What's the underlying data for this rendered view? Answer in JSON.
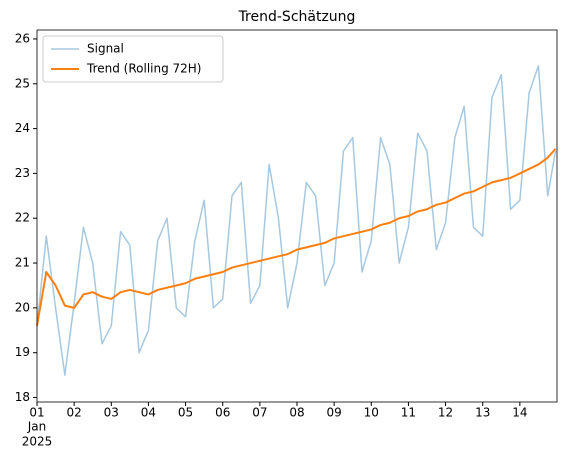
{
  "chart_data": {
    "type": "line",
    "title": "Trend-Schätzung",
    "x": [
      0,
      0.25,
      0.5,
      0.75,
      1,
      1.25,
      1.5,
      1.75,
      2,
      2.25,
      2.5,
      2.75,
      3,
      3.25,
      3.5,
      3.75,
      4,
      4.25,
      4.5,
      4.75,
      5,
      5.25,
      5.5,
      5.75,
      6,
      6.25,
      6.5,
      6.75,
      7,
      7.25,
      7.5,
      7.75,
      8,
      8.25,
      8.5,
      8.75,
      9,
      9.25,
      9.5,
      9.75,
      10,
      10.25,
      10.5,
      10.75,
      11,
      11.25,
      11.5,
      11.75,
      12,
      12.25,
      12.5,
      12.75,
      13,
      13.25,
      13.5,
      13.75,
      13.96
    ],
    "series": [
      {
        "name": "Signal",
        "color": "#a6c8e0",
        "width": 1.5,
        "values": [
          19.6,
          21.6,
          20.0,
          18.5,
          20.1,
          21.8,
          21.0,
          19.2,
          19.6,
          21.7,
          21.4,
          19.0,
          19.5,
          21.5,
          22.0,
          20.0,
          19.8,
          21.5,
          22.4,
          20.0,
          20.2,
          22.5,
          22.8,
          20.1,
          20.5,
          23.2,
          22.0,
          20.0,
          21.0,
          22.8,
          22.5,
          20.5,
          21.0,
          23.5,
          23.8,
          20.8,
          21.5,
          23.8,
          23.2,
          21.0,
          21.8,
          23.9,
          23.5,
          21.3,
          21.9,
          23.8,
          24.5,
          21.8,
          21.6,
          24.7,
          25.2,
          22.2,
          22.4,
          24.8,
          25.4,
          22.5,
          23.5
        ]
      },
      {
        "name": "Trend (Rolling 72H)",
        "color": "#ff7f0e",
        "width": 2,
        "values": [
          19.6,
          20.8,
          20.5,
          20.05,
          20.0,
          20.3,
          20.35,
          20.25,
          20.2,
          20.35,
          20.4,
          20.35,
          20.3,
          20.4,
          20.45,
          20.5,
          20.55,
          20.65,
          20.7,
          20.75,
          20.8,
          20.9,
          20.95,
          21.0,
          21.05,
          21.1,
          21.15,
          21.2,
          21.3,
          21.35,
          21.4,
          21.45,
          21.55,
          21.6,
          21.65,
          21.7,
          21.75,
          21.85,
          21.9,
          22.0,
          22.05,
          22.15,
          22.2,
          22.3,
          22.35,
          22.45,
          22.55,
          22.6,
          22.7,
          22.8,
          22.85,
          22.9,
          23.0,
          23.1,
          23.2,
          23.35,
          23.55
        ]
      }
    ],
    "xlim": [
      0,
      14
    ],
    "ylim": [
      17.9,
      26.2
    ],
    "xticks": [
      {
        "value": 0,
        "label": "01"
      },
      {
        "value": 1,
        "label": "02"
      },
      {
        "value": 2,
        "label": "03"
      },
      {
        "value": 3,
        "label": "04"
      },
      {
        "value": 4,
        "label": "05"
      },
      {
        "value": 5,
        "label": "06"
      },
      {
        "value": 6,
        "label": "07"
      },
      {
        "value": 7,
        "label": "08"
      },
      {
        "value": 8,
        "label": "09"
      },
      {
        "value": 9,
        "label": "10"
      },
      {
        "value": 10,
        "label": "11"
      },
      {
        "value": 11,
        "label": "12"
      },
      {
        "value": 12,
        "label": "13"
      },
      {
        "value": 13,
        "label": "14"
      }
    ],
    "x_month": "Jan",
    "x_year": "2025",
    "yticks": [
      18,
      19,
      20,
      21,
      22,
      23,
      24,
      25,
      26
    ],
    "legend": "upper left",
    "grid": false
  }
}
